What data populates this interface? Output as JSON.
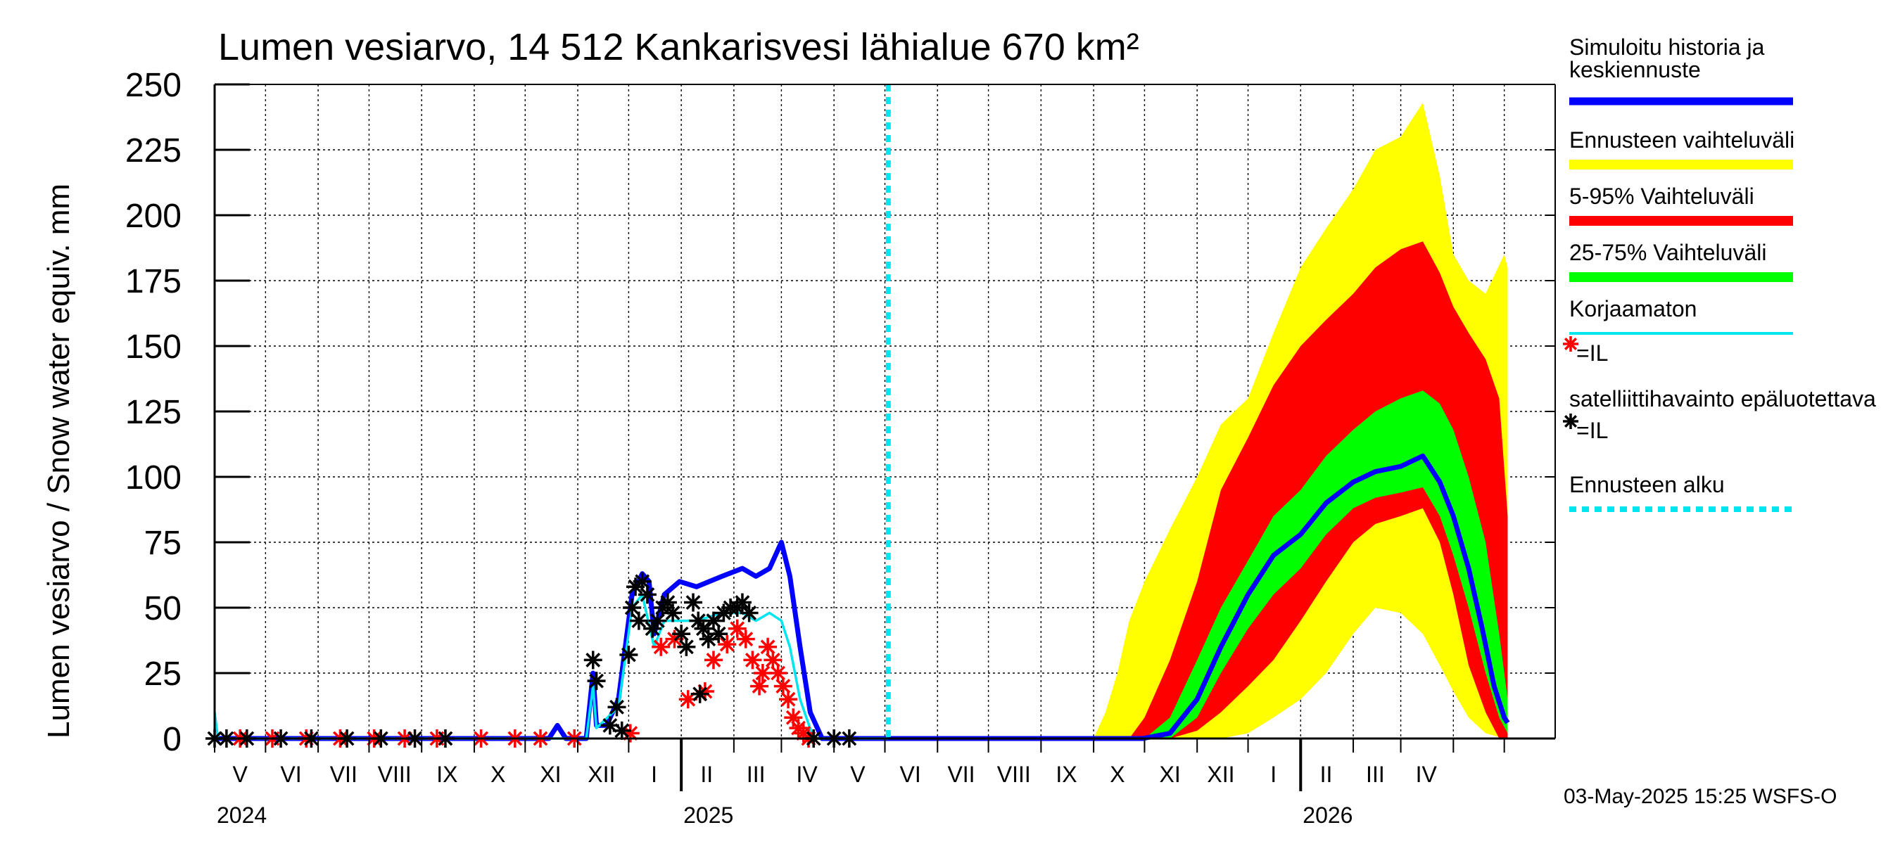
{
  "chart_data": {
    "type": "area",
    "title": "Lumen vesiarvo, 14 512 Kankarisvesi lähialue 670 km²",
    "ylabel": "Lumen vesiarvo / Snow water equiv.    mm",
    "ylim": [
      0,
      250
    ],
    "yticks": [
      0,
      25,
      50,
      75,
      100,
      125,
      150,
      175,
      200,
      225,
      250
    ],
    "xlim": [
      "2024-04-01",
      "2026-05-31"
    ],
    "grid": true,
    "legend_position": "right",
    "month_labels": [
      {
        "label": "V",
        "mid": "2024-04-16"
      },
      {
        "label": "VI",
        "mid": "2024-05-16"
      },
      {
        "label": "VII",
        "mid": "2024-06-16"
      },
      {
        "label": "VIII",
        "mid": "2024-07-16"
      },
      {
        "label": "IX",
        "mid": "2024-08-16"
      },
      {
        "label": "X",
        "mid": "2024-09-15"
      },
      {
        "label": "XI",
        "mid": "2024-10-16"
      },
      {
        "label": "XII",
        "mid": "2024-11-15"
      },
      {
        "label": "I",
        "mid": "2024-12-16"
      },
      {
        "label": "II",
        "mid": "2025-01-16"
      },
      {
        "label": "III",
        "mid": "2025-02-14"
      },
      {
        "label": "IV",
        "mid": "2025-03-16"
      },
      {
        "label": "V",
        "mid": "2025-04-15"
      },
      {
        "label": "VI",
        "mid": "2025-05-16"
      },
      {
        "label": "VII",
        "mid": "2025-06-15"
      },
      {
        "label": "VIII",
        "mid": "2025-07-16"
      },
      {
        "label": "IX",
        "mid": "2025-08-16"
      },
      {
        "label": "X",
        "mid": "2025-09-15"
      },
      {
        "label": "XI",
        "mid": "2025-10-16"
      },
      {
        "label": "XII",
        "mid": "2025-11-15"
      },
      {
        "label": "I",
        "mid": "2025-12-16"
      },
      {
        "label": "II",
        "mid": "2026-01-16"
      },
      {
        "label": "III",
        "mid": "2026-02-14"
      },
      {
        "label": "IV",
        "mid": "2026-03-16"
      }
    ],
    "year_labels": [
      {
        "label": "2024",
        "date": "2024-04-01"
      },
      {
        "label": "2025",
        "date": "2025-01-01"
      },
      {
        "label": "2026",
        "date": "2026-01-01"
      }
    ],
    "forecast_start": "2025-05-03",
    "series": [
      {
        "name": "Simuloitu historia ja keskiennuste",
        "kind": "line",
        "color": "#0000ff",
        "points": [
          [
            "2024-04-01",
            0
          ],
          [
            "2024-10-15",
            0
          ],
          [
            "2024-10-20",
            5
          ],
          [
            "2024-10-25",
            0
          ],
          [
            "2024-11-06",
            0
          ],
          [
            "2024-11-10",
            25
          ],
          [
            "2024-11-12",
            5
          ],
          [
            "2024-11-18",
            5
          ],
          [
            "2024-11-25",
            15
          ],
          [
            "2024-12-03",
            55
          ],
          [
            "2024-12-09",
            63
          ],
          [
            "2024-12-13",
            60
          ],
          [
            "2024-12-16",
            40
          ],
          [
            "2024-12-22",
            55
          ],
          [
            "2024-12-31",
            60
          ],
          [
            "2025-01-10",
            58
          ],
          [
            "2025-01-25",
            62
          ],
          [
            "2025-02-06",
            65
          ],
          [
            "2025-02-14",
            62
          ],
          [
            "2025-02-22",
            65
          ],
          [
            "2025-03-01",
            75
          ],
          [
            "2025-03-06",
            62
          ],
          [
            "2025-03-12",
            35
          ],
          [
            "2025-03-18",
            10
          ],
          [
            "2025-03-25",
            0
          ],
          [
            "2025-05-03",
            0
          ],
          [
            "2025-09-30",
            0
          ],
          [
            "2025-10-16",
            2
          ],
          [
            "2025-11-01",
            15
          ],
          [
            "2025-11-15",
            35
          ],
          [
            "2025-12-01",
            55
          ],
          [
            "2025-12-16",
            70
          ],
          [
            "2026-01-01",
            78
          ],
          [
            "2026-01-16",
            90
          ],
          [
            "2026-02-01",
            98
          ],
          [
            "2026-02-14",
            102
          ],
          [
            "2026-03-01",
            104
          ],
          [
            "2026-03-14",
            108
          ],
          [
            "2026-03-24",
            98
          ],
          [
            "2026-04-01",
            85
          ],
          [
            "2026-04-10",
            65
          ],
          [
            "2026-04-18",
            42
          ],
          [
            "2026-04-25",
            20
          ],
          [
            "2026-05-01",
            8
          ],
          [
            "2026-05-03",
            6
          ]
        ]
      },
      {
        "name": "Ennusteen vaihteluväli",
        "kind": "band",
        "color": "#ffff00",
        "points": [
          [
            "2025-05-03",
            0,
            0
          ],
          [
            "2025-09-01",
            0,
            0
          ],
          [
            "2025-09-08",
            0,
            10
          ],
          [
            "2025-09-15",
            0,
            25
          ],
          [
            "2025-09-22",
            0,
            45
          ],
          [
            "2025-10-01",
            0,
            60
          ],
          [
            "2025-10-16",
            0,
            80
          ],
          [
            "2025-11-01",
            0,
            100
          ],
          [
            "2025-11-15",
            0,
            120
          ],
          [
            "2025-12-01",
            2,
            130
          ],
          [
            "2025-12-16",
            8,
            155
          ],
          [
            "2026-01-01",
            15,
            180
          ],
          [
            "2026-01-16",
            25,
            195
          ],
          [
            "2026-02-01",
            40,
            210
          ],
          [
            "2026-02-14",
            50,
            225
          ],
          [
            "2026-03-01",
            48,
            230
          ],
          [
            "2026-03-14",
            40,
            243
          ],
          [
            "2026-03-24",
            28,
            215
          ],
          [
            "2026-04-01",
            18,
            185
          ],
          [
            "2026-04-10",
            8,
            175
          ],
          [
            "2026-04-20",
            2,
            170
          ],
          [
            "2026-05-01",
            0,
            185
          ],
          [
            "2026-05-03",
            0,
            180
          ]
        ]
      },
      {
        "name": "5-95% Vaihteluväli",
        "kind": "band",
        "color": "#ff0000",
        "points": [
          [
            "2025-05-03",
            0,
            0
          ],
          [
            "2025-09-22",
            0,
            0
          ],
          [
            "2025-10-01",
            0,
            8
          ],
          [
            "2025-10-16",
            0,
            30
          ],
          [
            "2025-11-01",
            3,
            60
          ],
          [
            "2025-11-15",
            10,
            95
          ],
          [
            "2025-12-01",
            20,
            115
          ],
          [
            "2025-12-16",
            30,
            135
          ],
          [
            "2026-01-01",
            45,
            150
          ],
          [
            "2026-01-16",
            60,
            160
          ],
          [
            "2026-02-01",
            75,
            170
          ],
          [
            "2026-02-14",
            82,
            180
          ],
          [
            "2026-03-01",
            85,
            187
          ],
          [
            "2026-03-14",
            88,
            190
          ],
          [
            "2026-03-24",
            75,
            178
          ],
          [
            "2026-04-01",
            55,
            165
          ],
          [
            "2026-04-10",
            28,
            155
          ],
          [
            "2026-04-20",
            10,
            145
          ],
          [
            "2026-04-28",
            0,
            130
          ],
          [
            "2026-05-03",
            0,
            85
          ]
        ]
      },
      {
        "name": "25-75% Vaihteluväli",
        "kind": "band",
        "color": "#00ff00",
        "points": [
          [
            "2025-05-03",
            0,
            0
          ],
          [
            "2025-10-01",
            0,
            0
          ],
          [
            "2025-10-16",
            0,
            8
          ],
          [
            "2025-11-01",
            8,
            30
          ],
          [
            "2025-11-15",
            25,
            50
          ],
          [
            "2025-12-01",
            42,
            68
          ],
          [
            "2025-12-16",
            55,
            85
          ],
          [
            "2026-01-01",
            65,
            95
          ],
          [
            "2026-01-16",
            78,
            108
          ],
          [
            "2026-02-01",
            88,
            118
          ],
          [
            "2026-02-14",
            92,
            125
          ],
          [
            "2026-03-01",
            94,
            130
          ],
          [
            "2026-03-14",
            96,
            133
          ],
          [
            "2026-03-24",
            85,
            128
          ],
          [
            "2026-04-01",
            70,
            118
          ],
          [
            "2026-04-10",
            50,
            100
          ],
          [
            "2026-04-20",
            25,
            75
          ],
          [
            "2026-04-28",
            8,
            40
          ],
          [
            "2026-05-03",
            2,
            15
          ]
        ]
      },
      {
        "name": "Korjaamaton",
        "kind": "line",
        "color": "#00e5ee",
        "points": [
          [
            "2024-04-01",
            10
          ],
          [
            "2024-04-03",
            0
          ],
          [
            "2024-11-06",
            0
          ],
          [
            "2024-11-10",
            20
          ],
          [
            "2024-11-12",
            4
          ],
          [
            "2024-11-25",
            12
          ],
          [
            "2024-12-03",
            50
          ],
          [
            "2024-12-09",
            55
          ],
          [
            "2024-12-16",
            35
          ],
          [
            "2024-12-22",
            45
          ],
          [
            "2025-01-10",
            45
          ],
          [
            "2025-01-25",
            48
          ],
          [
            "2025-02-06",
            48
          ],
          [
            "2025-02-14",
            45
          ],
          [
            "2025-02-22",
            48
          ],
          [
            "2025-03-01",
            45
          ],
          [
            "2025-03-06",
            35
          ],
          [
            "2025-03-12",
            15
          ],
          [
            "2025-03-20",
            0
          ],
          [
            "2025-05-03",
            0
          ]
        ]
      },
      {
        "name": "=IL satelliittihavainto epäluotettava",
        "kind": "markers",
        "color": "#ff0000",
        "points": [
          [
            "2024-04-16",
            0
          ],
          [
            "2024-05-05",
            0
          ],
          [
            "2024-05-25",
            0
          ],
          [
            "2024-06-14",
            0
          ],
          [
            "2024-07-04",
            0
          ],
          [
            "2024-07-22",
            0
          ],
          [
            "2024-08-10",
            0
          ],
          [
            "2024-09-05",
            0
          ],
          [
            "2024-09-25",
            0
          ],
          [
            "2024-10-10",
            0
          ],
          [
            "2024-10-30",
            0
          ],
          [
            "2024-12-02",
            2
          ],
          [
            "2024-12-20",
            35
          ],
          [
            "2024-12-28",
            38
          ],
          [
            "2025-01-05",
            15
          ],
          [
            "2025-01-15",
            18
          ],
          [
            "2025-01-20",
            30
          ],
          [
            "2025-01-28",
            36
          ],
          [
            "2025-02-03",
            42
          ],
          [
            "2025-02-08",
            38
          ],
          [
            "2025-02-12",
            30
          ],
          [
            "2025-02-16",
            20
          ],
          [
            "2025-02-18",
            25
          ],
          [
            "2025-02-21",
            35
          ],
          [
            "2025-02-24",
            30
          ],
          [
            "2025-02-27",
            25
          ],
          [
            "2025-03-02",
            20
          ],
          [
            "2025-03-05",
            15
          ],
          [
            "2025-03-08",
            8
          ],
          [
            "2025-03-11",
            4
          ],
          [
            "2025-03-14",
            2
          ],
          [
            "2025-03-17",
            0
          ]
        ]
      },
      {
        "name": "=IL satelliittihavainto",
        "kind": "markers",
        "color": "#000000",
        "points": [
          [
            "2024-04-01",
            0
          ],
          [
            "2024-04-08",
            0
          ],
          [
            "2024-04-20",
            0
          ],
          [
            "2024-05-10",
            0
          ],
          [
            "2024-05-28",
            0
          ],
          [
            "2024-06-18",
            0
          ],
          [
            "2024-07-08",
            0
          ],
          [
            "2024-07-28",
            0
          ],
          [
            "2024-08-15",
            0
          ],
          [
            "2024-11-10",
            30
          ],
          [
            "2024-11-12",
            22
          ],
          [
            "2024-11-20",
            5
          ],
          [
            "2024-11-24",
            12
          ],
          [
            "2024-11-27",
            3
          ],
          [
            "2024-12-01",
            32
          ],
          [
            "2024-12-03",
            50
          ],
          [
            "2024-12-05",
            58
          ],
          [
            "2024-12-07",
            45
          ],
          [
            "2024-12-09",
            60
          ],
          [
            "2024-12-12",
            55
          ],
          [
            "2024-12-15",
            42
          ],
          [
            "2024-12-18",
            45
          ],
          [
            "2024-12-21",
            50
          ],
          [
            "2024-12-24",
            52
          ],
          [
            "2024-12-27",
            48
          ],
          [
            "2025-01-01",
            40
          ],
          [
            "2025-01-04",
            35
          ],
          [
            "2025-01-08",
            52
          ],
          [
            "2025-01-11",
            45
          ],
          [
            "2025-01-14",
            42
          ],
          [
            "2025-01-17",
            38
          ],
          [
            "2025-01-20",
            45
          ],
          [
            "2025-01-23",
            40
          ],
          [
            "2025-01-26",
            48
          ],
          [
            "2025-01-30",
            50
          ],
          [
            "2025-02-03",
            50
          ],
          [
            "2025-02-06",
            52
          ],
          [
            "2025-02-10",
            48
          ],
          [
            "2025-01-12",
            17
          ],
          [
            "2025-03-20",
            0
          ],
          [
            "2025-04-01",
            0
          ],
          [
            "2025-04-10",
            0
          ]
        ]
      }
    ],
    "legend": [
      {
        "label": "Simuloitu historia ja keskiennuste",
        "kind": "line",
        "color": "#0000ff"
      },
      {
        "label": "Ennusteen vaihteluväli",
        "kind": "band",
        "color": "#ffff00"
      },
      {
        "label": "5-95% Vaihteluväli",
        "kind": "band",
        "color": "#ff0000"
      },
      {
        "label": "25-75% Vaihteluväli",
        "kind": "band",
        "color": "#00ff00"
      },
      {
        "label": "Korjaamaton",
        "kind": "thin",
        "color": "#00e5ee"
      },
      {
        "label": "=IL satelliittihavainto epäluotettava",
        "kind": "marker",
        "color": "#ff0000"
      },
      {
        "label": "=IL satelliittihavainto",
        "kind": "marker",
        "color": "#000000"
      },
      {
        "label": "Ennusteen alku",
        "kind": "dashed",
        "color": "#00e5ee"
      }
    ],
    "footer": "03-May-2025 15:25 WSFS-O"
  }
}
